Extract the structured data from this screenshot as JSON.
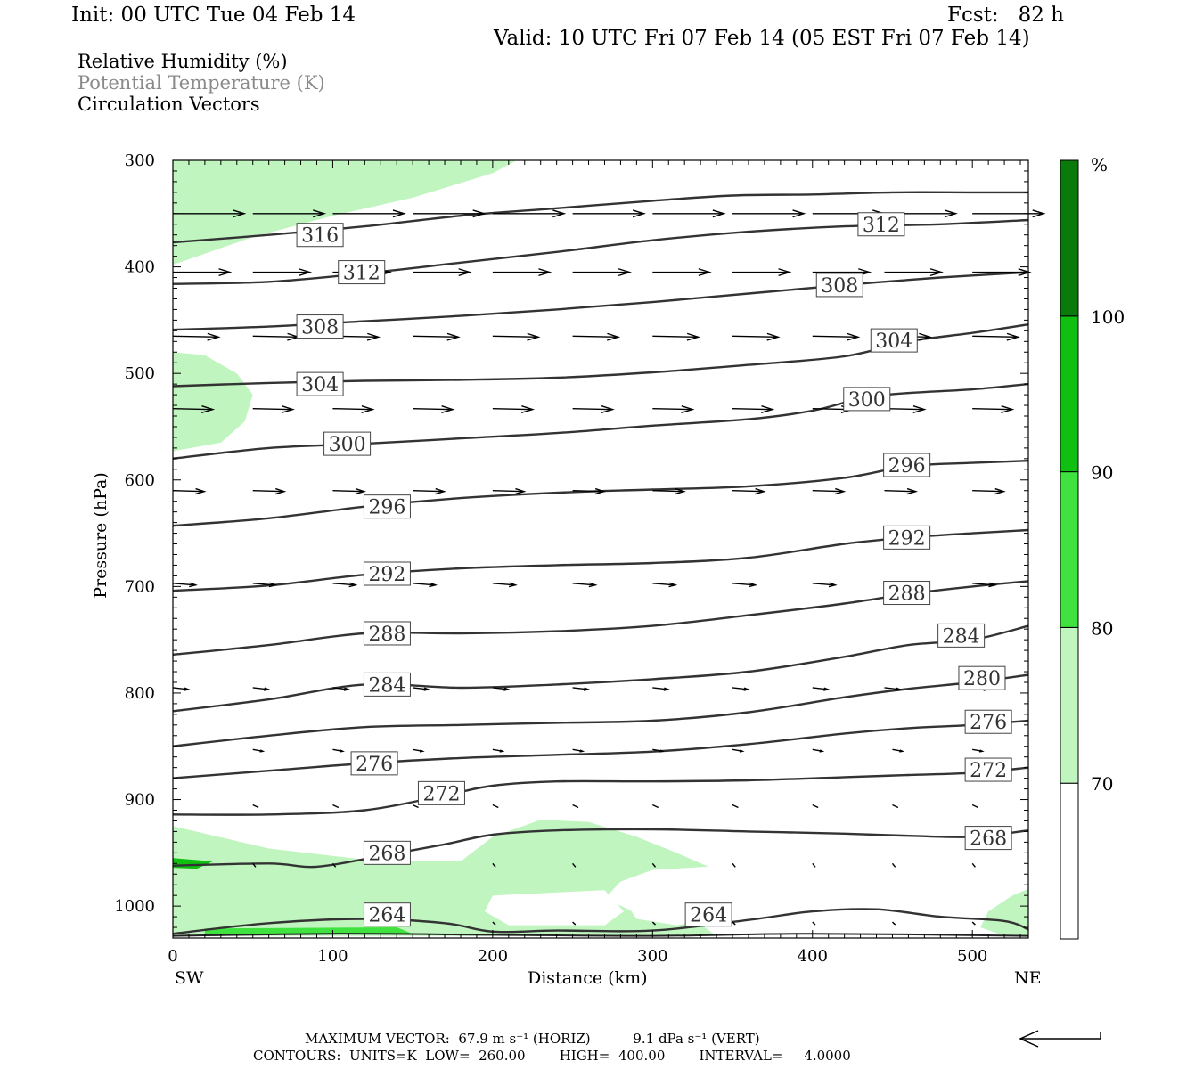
{
  "header": {
    "init": "Init: 00 UTC Tue 04 Feb 14",
    "fcst": "Fcst:   82 h",
    "valid": "Valid: 10 UTC Fri 07 Feb 14 (05 EST Fri 07 Feb 14)"
  },
  "legend_lines": [
    "Relative Humidity (%)",
    "Potential Temperature (K)",
    "Circulation Vectors"
  ],
  "footer": {
    "max_vector_line": "MAXIMUM VECTOR:  67.9 m s⁻¹ (HORIZ)          9.1 dPa s⁻¹ (VERT)",
    "contours_line": "CONTOURS:  UNITS=K  LOW=  260.00        HIGH=  400.00        INTERVAL=     4.0000"
  },
  "colors": {
    "rh_70_80": "#c0f5c0",
    "rh_80_90": "#3fe23f",
    "rh_90_100": "#10c010",
    "rh_100": "#0a7a0a",
    "theta_line": "#333333"
  },
  "chart_data": {
    "type": "contour_cross_section",
    "xlabel": "Distance (km)",
    "ylabel": "Pressure (hPa)",
    "x_ticks": [
      0,
      100,
      200,
      300,
      400,
      500
    ],
    "y_ticks": [
      300,
      400,
      500,
      600,
      700,
      800,
      900,
      1000
    ],
    "xlim": [
      0,
      535
    ],
    "ylim": [
      300,
      1030
    ],
    "y_inverted": true,
    "left_end_label": "SW",
    "right_end_label": "NE",
    "colorbar": {
      "unit": "%",
      "ticks": [
        70,
        80,
        90,
        100
      ]
    },
    "theta_contours": [
      {
        "value": 316,
        "labels": [
          {
            "x": 92,
            "p": 370
          }
        ],
        "points": [
          [
            0,
            377
          ],
          [
            60,
            370
          ],
          [
            120,
            362
          ],
          [
            180,
            352
          ],
          [
            240,
            345
          ],
          [
            300,
            338
          ],
          [
            350,
            333
          ],
          [
            400,
            332
          ],
          [
            450,
            330
          ],
          [
            500,
            330
          ],
          [
            535,
            330
          ]
        ]
      },
      {
        "value": 312,
        "labels": [
          {
            "x": 118,
            "p": 405
          },
          {
            "x": 443,
            "p": 360
          }
        ],
        "points": [
          [
            0,
            416
          ],
          [
            60,
            414
          ],
          [
            120,
            406
          ],
          [
            180,
            396
          ],
          [
            240,
            386
          ],
          [
            300,
            375
          ],
          [
            360,
            367
          ],
          [
            420,
            362
          ],
          [
            480,
            360
          ],
          [
            535,
            356
          ]
        ]
      },
      {
        "value": 308,
        "labels": [
          {
            "x": 92,
            "p": 456
          },
          {
            "x": 417,
            "p": 417
          }
        ],
        "points": [
          [
            0,
            459
          ],
          [
            60,
            456
          ],
          [
            120,
            451
          ],
          [
            180,
            446
          ],
          [
            240,
            440
          ],
          [
            300,
            433
          ],
          [
            360,
            425
          ],
          [
            420,
            417
          ],
          [
            480,
            410
          ],
          [
            535,
            405
          ]
        ]
      },
      {
        "value": 304,
        "labels": [
          {
            "x": 92,
            "p": 510
          },
          {
            "x": 451,
            "p": 469
          }
        ],
        "points": [
          [
            0,
            512
          ],
          [
            60,
            509
          ],
          [
            120,
            507
          ],
          [
            180,
            506
          ],
          [
            240,
            504
          ],
          [
            300,
            499
          ],
          [
            360,
            492
          ],
          [
            420,
            484
          ],
          [
            460,
            470
          ],
          [
            500,
            462
          ],
          [
            535,
            454
          ]
        ]
      },
      {
        "value": 300,
        "labels": [
          {
            "x": 109,
            "p": 566
          },
          {
            "x": 434,
            "p": 524
          }
        ],
        "points": [
          [
            0,
            580
          ],
          [
            60,
            570
          ],
          [
            120,
            566
          ],
          [
            180,
            561
          ],
          [
            240,
            556
          ],
          [
            300,
            549
          ],
          [
            360,
            543
          ],
          [
            400,
            535
          ],
          [
            440,
            521
          ],
          [
            500,
            515
          ],
          [
            535,
            510
          ]
        ]
      },
      {
        "value": 296,
        "labels": [
          {
            "x": 134,
            "p": 625
          },
          {
            "x": 459,
            "p": 586
          }
        ],
        "points": [
          [
            0,
            643
          ],
          [
            60,
            636
          ],
          [
            120,
            625
          ],
          [
            180,
            617
          ],
          [
            240,
            612
          ],
          [
            300,
            609
          ],
          [
            360,
            606
          ],
          [
            420,
            598
          ],
          [
            460,
            587
          ],
          [
            500,
            584
          ],
          [
            535,
            582
          ]
        ]
      },
      {
        "value": 292,
        "labels": [
          {
            "x": 134,
            "p": 688
          },
          {
            "x": 459,
            "p": 654
          }
        ],
        "points": [
          [
            0,
            704
          ],
          [
            60,
            699
          ],
          [
            120,
            689
          ],
          [
            180,
            683
          ],
          [
            240,
            680
          ],
          [
            300,
            678
          ],
          [
            360,
            673
          ],
          [
            420,
            660
          ],
          [
            460,
            654
          ],
          [
            500,
            650
          ],
          [
            535,
            647
          ]
        ]
      },
      {
        "value": 288,
        "labels": [
          {
            "x": 134,
            "p": 744
          },
          {
            "x": 459,
            "p": 706
          }
        ],
        "points": [
          [
            0,
            764
          ],
          [
            60,
            755
          ],
          [
            120,
            744
          ],
          [
            180,
            744
          ],
          [
            240,
            742
          ],
          [
            300,
            737
          ],
          [
            360,
            727
          ],
          [
            420,
            716
          ],
          [
            460,
            707
          ],
          [
            500,
            700
          ],
          [
            535,
            695
          ]
        ]
      },
      {
        "value": 284,
        "labels": [
          {
            "x": 134,
            "p": 792
          },
          {
            "x": 493,
            "p": 746
          }
        ],
        "points": [
          [
            0,
            817
          ],
          [
            60,
            806
          ],
          [
            120,
            792
          ],
          [
            180,
            795
          ],
          [
            240,
            792
          ],
          [
            300,
            787
          ],
          [
            360,
            780
          ],
          [
            420,
            766
          ],
          [
            460,
            755
          ],
          [
            500,
            750
          ],
          [
            535,
            737
          ]
        ]
      },
      {
        "value": 280,
        "labels": [
          {
            "x": 506,
            "p": 786
          }
        ],
        "points": [
          [
            0,
            850
          ],
          [
            60,
            840
          ],
          [
            120,
            832
          ],
          [
            180,
            830
          ],
          [
            240,
            828
          ],
          [
            300,
            826
          ],
          [
            360,
            818
          ],
          [
            420,
            804
          ],
          [
            460,
            796
          ],
          [
            500,
            790
          ],
          [
            535,
            783
          ]
        ]
      },
      {
        "value": 276,
        "labels": [
          {
            "x": 126,
            "p": 866
          },
          {
            "x": 510,
            "p": 827
          }
        ],
        "points": [
          [
            0,
            880
          ],
          [
            60,
            873
          ],
          [
            120,
            866
          ],
          [
            180,
            861
          ],
          [
            240,
            858
          ],
          [
            300,
            855
          ],
          [
            360,
            848
          ],
          [
            420,
            838
          ],
          [
            460,
            833
          ],
          [
            500,
            830
          ],
          [
            535,
            826
          ]
        ]
      },
      {
        "value": 272,
        "labels": [
          {
            "x": 168,
            "p": 894
          },
          {
            "x": 510,
            "p": 872
          }
        ],
        "points": [
          [
            0,
            914
          ],
          [
            60,
            914
          ],
          [
            120,
            910
          ],
          [
            170,
            896
          ],
          [
            200,
            887
          ],
          [
            240,
            883
          ],
          [
            300,
            883
          ],
          [
            360,
            882
          ],
          [
            420,
            879
          ],
          [
            460,
            877
          ],
          [
            500,
            875
          ],
          [
            535,
            870
          ]
        ]
      },
      {
        "value": 268,
        "labels": [
          {
            "x": 134,
            "p": 950
          },
          {
            "x": 510,
            "p": 936
          }
        ],
        "points": [
          [
            0,
            962
          ],
          [
            60,
            960
          ],
          [
            90,
            963
          ],
          [
            130,
            953
          ],
          [
            170,
            942
          ],
          [
            200,
            933
          ],
          [
            240,
            929
          ],
          [
            300,
            928
          ],
          [
            360,
            930
          ],
          [
            420,
            932
          ],
          [
            460,
            934
          ],
          [
            500,
            935
          ],
          [
            535,
            929
          ]
        ]
      },
      {
        "value": 264,
        "labels": [
          {
            "x": 134,
            "p": 1008
          },
          {
            "x": 335,
            "p": 1008
          }
        ],
        "points": [
          [
            0,
            1026
          ],
          [
            60,
            1016
          ],
          [
            120,
            1012
          ],
          [
            170,
            1016
          ],
          [
            200,
            1024
          ],
          [
            240,
            1023
          ],
          [
            300,
            1023
          ],
          [
            360,
            1013
          ],
          [
            400,
            1005
          ],
          [
            440,
            1003
          ],
          [
            480,
            1010
          ],
          [
            520,
            1014
          ],
          [
            535,
            1022
          ]
        ]
      }
    ],
    "vectors_source_note": ""
  }
}
